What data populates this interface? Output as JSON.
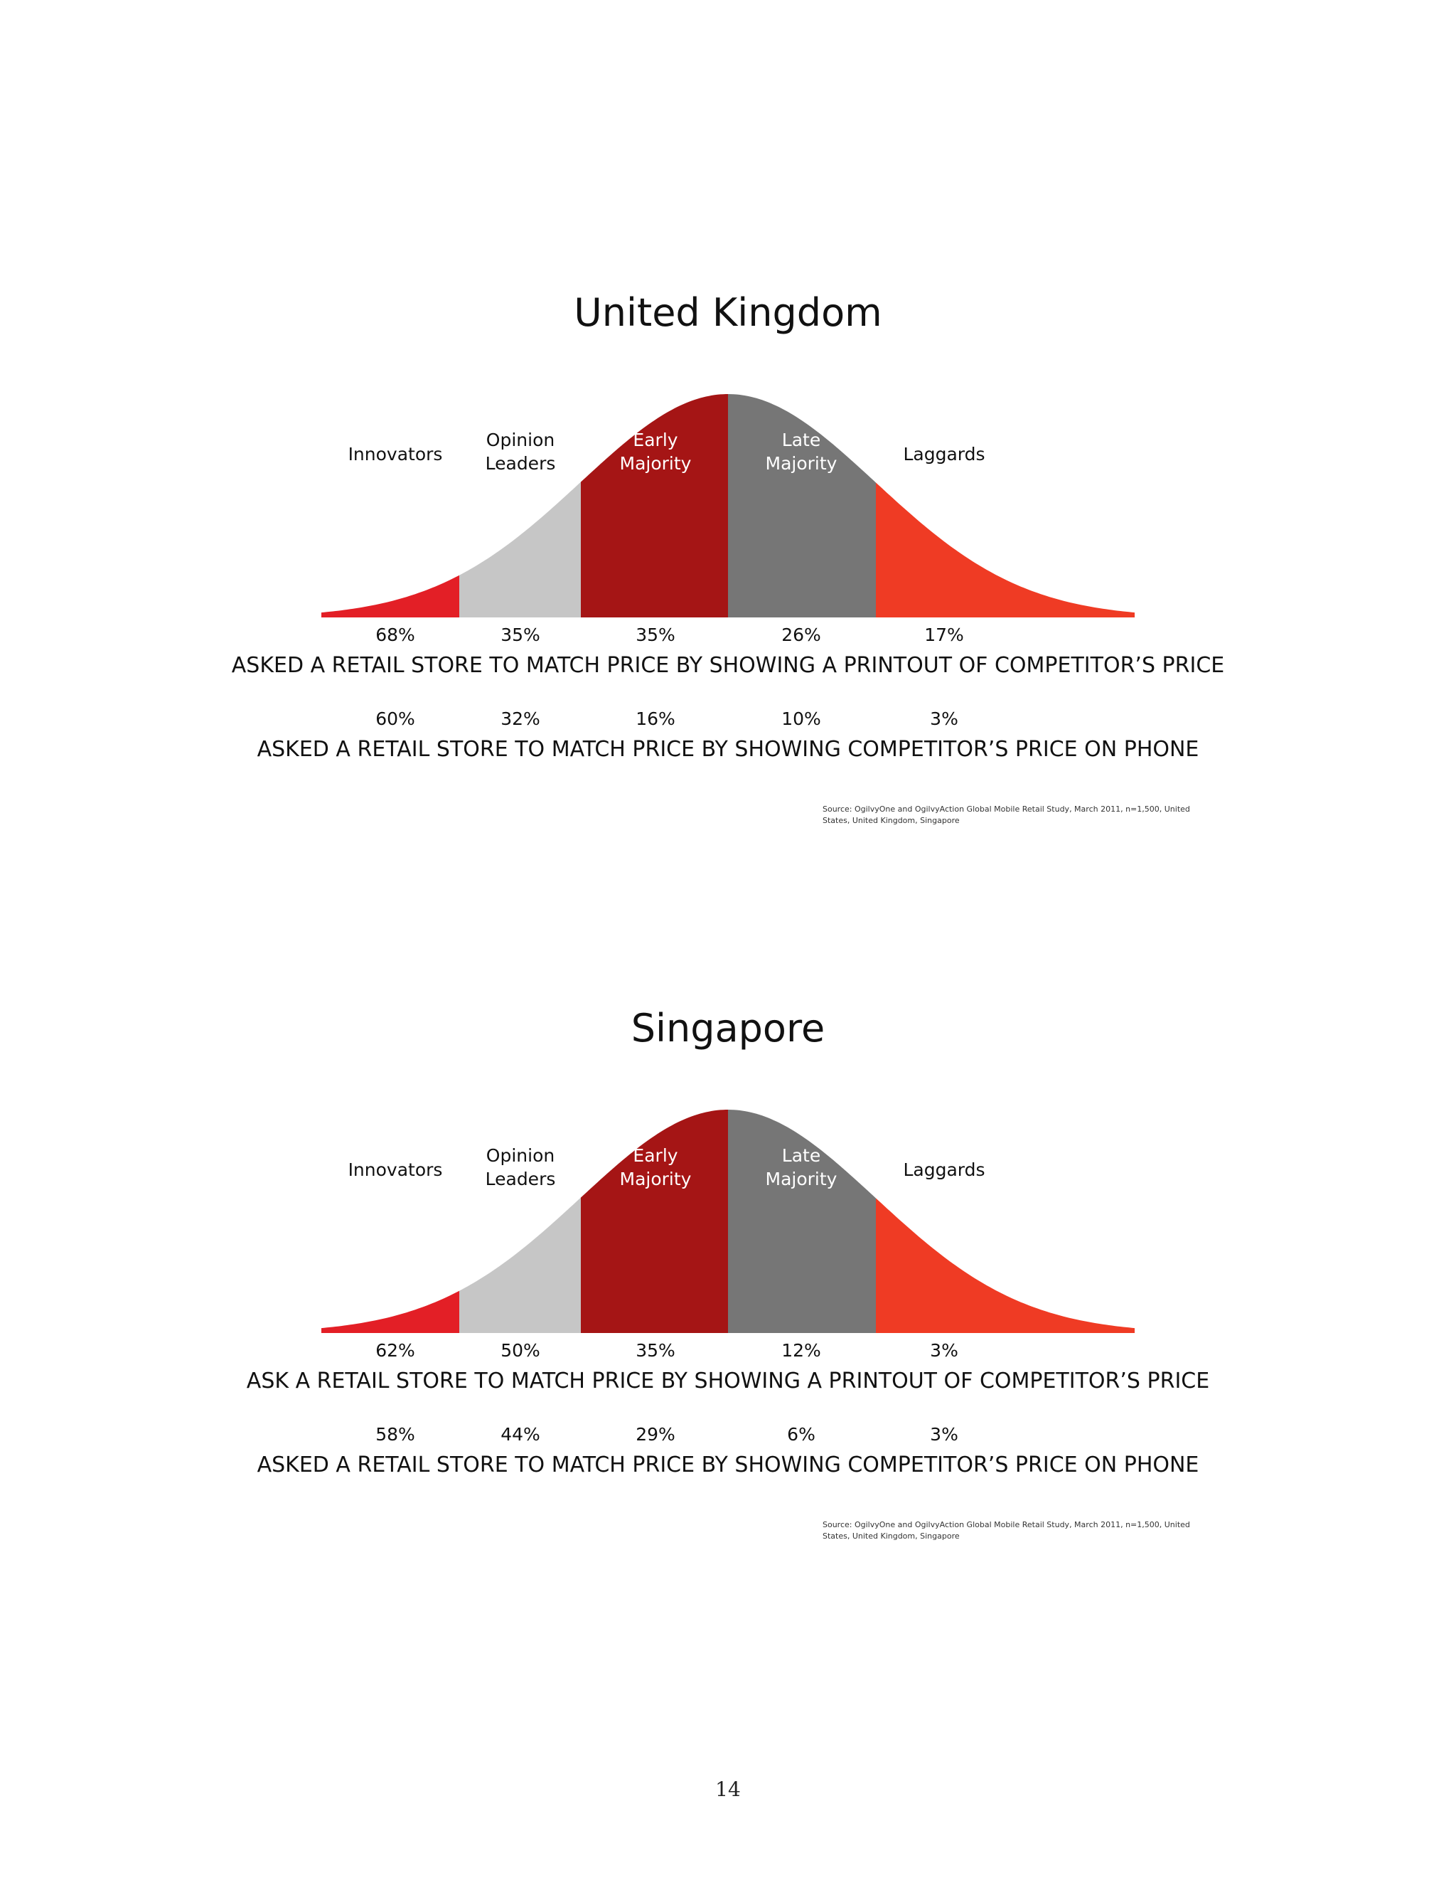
{
  "chart_data": [
    {
      "type": "area",
      "title": "United Kingdom",
      "categories": [
        "Innovators",
        "Opinion\nLeaders",
        "Early\nMajority",
        "Late\nMajority",
        "Laggards"
      ],
      "series": [
        {
          "name": "ASKED A RETAIL STORE TO MATCH PRICE BY SHOWING A PRINTOUT OF COMPETITOR’S PRICE",
          "values": [
            68,
            35,
            35,
            26,
            17
          ],
          "labels": [
            "68%",
            "35%",
            "35%",
            "26%",
            "17%"
          ]
        },
        {
          "name": "ASKED A RETAIL STORE TO MATCH PRICE BY SHOWING COMPETITOR’S PRICE ON PHONE",
          "values": [
            60,
            32,
            16,
            10,
            3
          ],
          "labels": [
            "60%",
            "32%",
            "16%",
            "10%",
            "3%"
          ]
        }
      ],
      "source": "Source: OgilvyOne and OgilvyAction Global Mobile Retail Study, March 2011, n=1,500, United States, United Kingdom, Singapore"
    },
    {
      "type": "area",
      "title": "Singapore",
      "categories": [
        "Innovators",
        "Opinion\nLeaders",
        "Early\nMajority",
        "Late\nMajority",
        "Laggards"
      ],
      "series": [
        {
          "name": "ASK A RETAIL STORE TO MATCH PRICE BY SHOWING A PRINTOUT OF COMPETITOR’S PRICE",
          "values": [
            62,
            50,
            35,
            12,
            3
          ],
          "labels": [
            "62%",
            "50%",
            "35%",
            "12%",
            "3%"
          ]
        },
        {
          "name": "ASKED A RETAIL STORE TO MATCH PRICE BY SHOWING COMPETITOR’S PRICE ON PHONE",
          "values": [
            58,
            44,
            29,
            6,
            3
          ],
          "labels": [
            "58%",
            "44%",
            "29%",
            "6%",
            "3%"
          ]
        }
      ],
      "source": "Source: OgilvyOne and OgilvyAction Global Mobile Retail Study, March 2011, n=1,500, United States, United Kingdom, Singapore"
    }
  ],
  "segment_colors": [
    "#e31f26",
    "#c6c6c6",
    "#a51515",
    "#767676",
    "#ef3b24"
  ],
  "page_number": "14"
}
